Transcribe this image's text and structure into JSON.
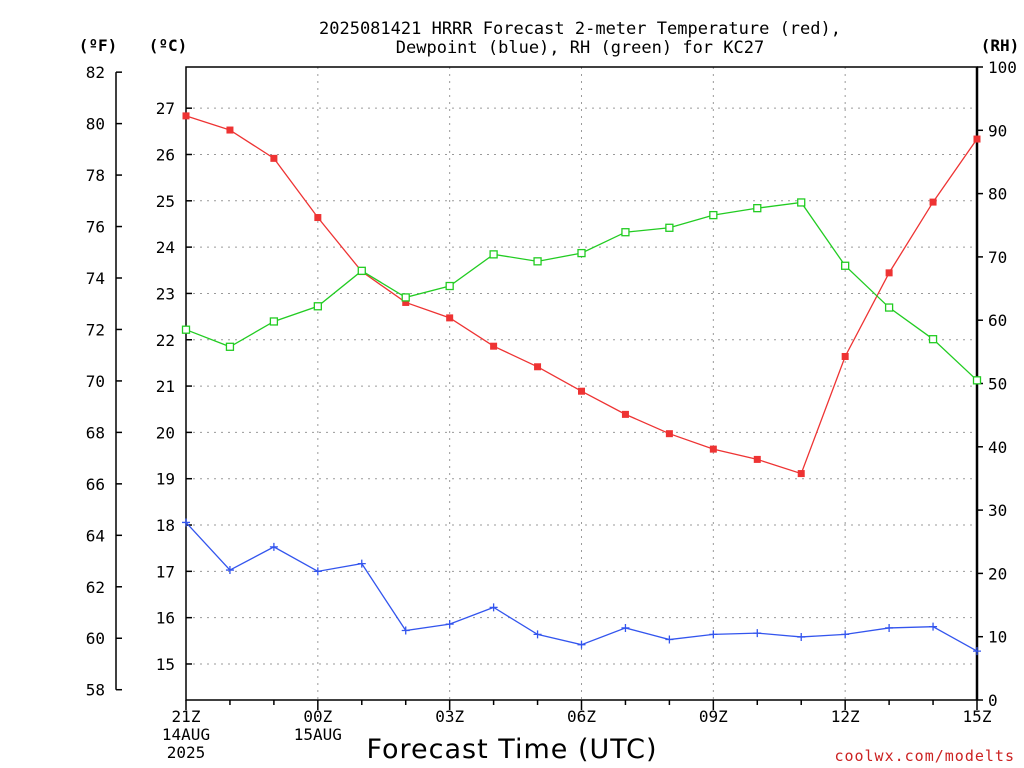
{
  "title_line1": "2025081421 HRRR Forecast 2-meter Temperature (red),",
  "title_line2": "Dewpoint (blue), RH (green) for KC27",
  "units": {
    "f": "(ºF)",
    "c": "(ºC)",
    "rh": "(RH)"
  },
  "xaxis_title": "Forecast Time (UTC)",
  "credit": "coolwx.com/modelts",
  "colors": {
    "temperature": "#ee3333",
    "dewpoint": "#3355ee",
    "rh": "#22cc22"
  },
  "chart_data": {
    "type": "line",
    "x": [
      "21Z",
      "22Z",
      "23Z",
      "00Z",
      "01Z",
      "02Z",
      "03Z",
      "04Z",
      "05Z",
      "06Z",
      "07Z",
      "08Z",
      "09Z",
      "10Z",
      "11Z",
      "12Z",
      "13Z",
      "14Z",
      "15Z"
    ],
    "x_tick_labels": [
      {
        "index": 0,
        "lines": [
          "21Z",
          "14AUG",
          "2025"
        ]
      },
      {
        "index": 3,
        "lines": [
          "00Z",
          "15AUG"
        ]
      },
      {
        "index": 6,
        "lines": [
          "03Z"
        ]
      },
      {
        "index": 9,
        "lines": [
          "06Z"
        ]
      },
      {
        "index": 12,
        "lines": [
          "09Z"
        ]
      },
      {
        "index": 15,
        "lines": [
          "12Z"
        ]
      },
      {
        "index": 18,
        "lines": [
          "15Z"
        ]
      }
    ],
    "yaxis_left_f": {
      "ticks": [
        58,
        60,
        62,
        64,
        66,
        68,
        70,
        72,
        74,
        76,
        78,
        80,
        82
      ]
    },
    "yaxis_left_c": {
      "ticks": [
        15,
        16,
        17,
        18,
        19,
        20,
        21,
        22,
        23,
        24,
        25,
        26,
        27
      ]
    },
    "yaxis_right_rh": {
      "ticks": [
        0,
        10,
        20,
        30,
        40,
        50,
        60,
        70,
        80,
        90,
        100
      ],
      "ylim": [
        0,
        100
      ]
    },
    "ylim_f": [
      57.6,
      82.2
    ],
    "grid": true,
    "series": [
      {
        "name": "Temperature (red)",
        "units": "F",
        "color": "#ee3333",
        "marker": "filled-square",
        "values": [
          80.3,
          79.75,
          78.65,
          76.35,
          74.25,
          73.05,
          72.45,
          71.35,
          70.55,
          69.6,
          68.7,
          67.95,
          67.35,
          66.95,
          66.4,
          70.95,
          74.2,
          76.95,
          79.4
        ]
      },
      {
        "name": "Dewpoint (blue)",
        "units": "F",
        "color": "#3355ee",
        "marker": "plus",
        "values": [
          64.5,
          62.65,
          63.55,
          62.6,
          62.9,
          60.3,
          60.55,
          61.2,
          60.15,
          59.75,
          60.4,
          59.95,
          60.15,
          60.2,
          60.05,
          60.15,
          60.4,
          60.45,
          59.5
        ]
      },
      {
        "name": "RH (green)",
        "units": "%",
        "color": "#22cc22",
        "marker": "open-square",
        "values": [
          58.5,
          55.8,
          59.8,
          62.2,
          67.8,
          63.6,
          65.4,
          70.4,
          69.3,
          70.6,
          73.9,
          74.6,
          76.6,
          77.7,
          78.6,
          68.6,
          62.0,
          57.0,
          50.5
        ]
      }
    ]
  }
}
